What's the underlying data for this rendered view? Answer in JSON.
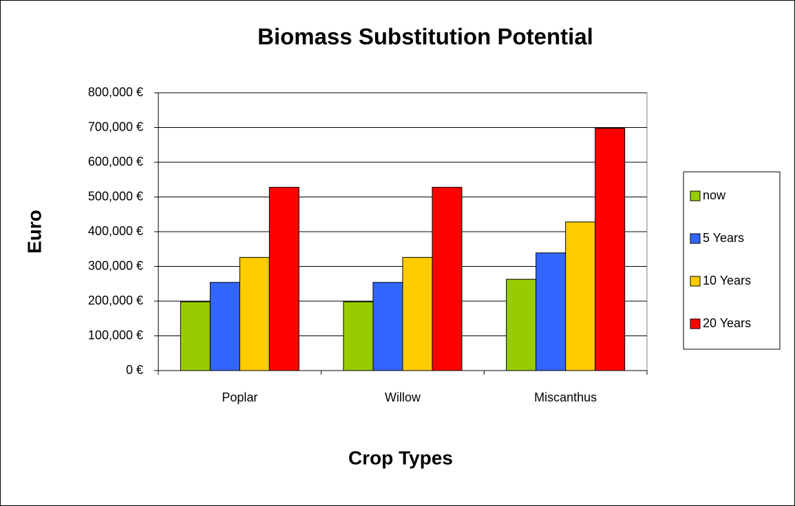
{
  "chart_data": {
    "type": "bar",
    "title": "Biomass Substitution Potential",
    "x_label": "Crop Types",
    "y_label": "Euro",
    "categories": [
      "Poplar",
      "Willow",
      "Miscanthus"
    ],
    "series": [
      {
        "name": "now",
        "color": "#99cc00",
        "values": [
          198000,
          198000,
          263000
        ]
      },
      {
        "name": "5 Years",
        "color": "#3366ff",
        "values": [
          254000,
          254000,
          339000
        ]
      },
      {
        "name": "10 Years",
        "color": "#ffcc00",
        "values": [
          326000,
          326000,
          428000
        ]
      },
      {
        "name": "20 Years",
        "color": "#ff0000",
        "values": [
          528000,
          528000,
          698000
        ]
      }
    ],
    "ylim": [
      0,
      800000
    ],
    "yticks": [
      {
        "value": 0,
        "label": "0 €"
      },
      {
        "value": 100000,
        "label": "100,000 €"
      },
      {
        "value": 200000,
        "label": "200,000 €"
      },
      {
        "value": 300000,
        "label": "300,000 €"
      },
      {
        "value": 400000,
        "label": "400,000 €"
      },
      {
        "value": 500000,
        "label": "500,000 €"
      },
      {
        "value": 600000,
        "label": "600,000 €"
      },
      {
        "value": 700000,
        "label": "700,000 €"
      },
      {
        "value": 800000,
        "label": "800,000 €"
      }
    ],
    "grid": true,
    "legend": "right"
  }
}
